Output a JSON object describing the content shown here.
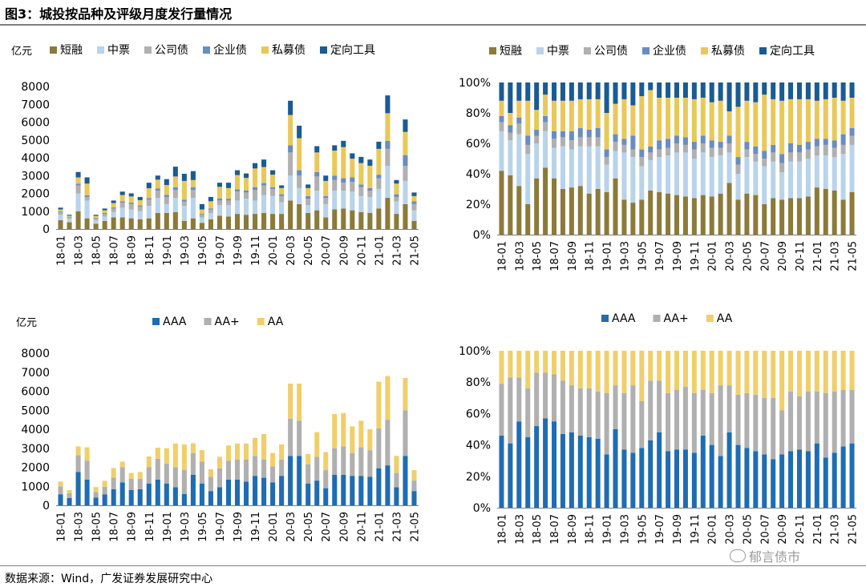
{
  "figure_title": "图3：城投按品种及评级月度发行量情况",
  "source": "数据来源：Wind，广发证券发展研究中心",
  "watermark": "郁言债市",
  "chart_data": [
    {
      "id": "product-amount",
      "type": "bar",
      "stacked": true,
      "unit_label": "亿元",
      "ylim": [
        0,
        8000
      ],
      "yticks": [
        0,
        1000,
        2000,
        3000,
        4000,
        5000,
        6000,
        7000,
        8000
      ],
      "categories": [
        "18-01",
        "18-02",
        "18-03",
        "18-04",
        "18-05",
        "18-06",
        "18-07",
        "18-08",
        "18-09",
        "18-10",
        "18-11",
        "18-12",
        "19-01",
        "19-02",
        "19-03",
        "19-04",
        "19-05",
        "19-06",
        "19-07",
        "19-08",
        "19-09",
        "19-10",
        "19-11",
        "19-12",
        "20-01",
        "20-02",
        "20-03",
        "20-04",
        "20-05",
        "20-06",
        "20-07",
        "20-08",
        "20-09",
        "20-10",
        "20-11",
        "20-12",
        "21-01",
        "21-02",
        "21-03",
        "21-04",
        "21-05"
      ],
      "series": [
        {
          "name": "短融",
          "color": "#8b7a3a",
          "values": [
            500,
            380,
            1000,
            600,
            300,
            450,
            650,
            650,
            600,
            550,
            600,
            900,
            900,
            950,
            450,
            600,
            350,
            550,
            750,
            700,
            850,
            800,
            850,
            900,
            850,
            850,
            1600,
            1400,
            900,
            1050,
            650,
            1100,
            1150,
            1050,
            950,
            900,
            1150,
            1750,
            850,
            1400,
            450
          ]
        },
        {
          "name": "中票",
          "color": "#b8d3ea",
          "values": [
            300,
            200,
            1000,
            1000,
            200,
            250,
            300,
            550,
            500,
            450,
            700,
            850,
            500,
            800,
            850,
            1150,
            300,
            350,
            600,
            650,
            750,
            900,
            750,
            1000,
            1000,
            650,
            1400,
            900,
            450,
            1100,
            750,
            1050,
            1000,
            1050,
            900,
            900,
            1100,
            1800,
            700,
            1300,
            600
          ]
        },
        {
          "name": "公司债",
          "color": "#b0b0b0",
          "values": [
            150,
            80,
            450,
            200,
            100,
            150,
            200,
            280,
            300,
            250,
            350,
            400,
            400,
            450,
            250,
            450,
            150,
            200,
            250,
            250,
            500,
            350,
            600,
            550,
            400,
            350,
            1300,
            700,
            350,
            800,
            350,
            600,
            450,
            550,
            500,
            350,
            600,
            950,
            250,
            850,
            350
          ]
        },
        {
          "name": "企业债",
          "color": "#6a8dc0",
          "values": [
            50,
            30,
            100,
            100,
            40,
            50,
            60,
            80,
            80,
            70,
            90,
            120,
            120,
            150,
            100,
            150,
            50,
            60,
            120,
            100,
            130,
            120,
            150,
            130,
            100,
            100,
            400,
            300,
            150,
            250,
            100,
            250,
            250,
            250,
            150,
            150,
            200,
            450,
            150,
            600,
            150
          ]
        },
        {
          "name": "私募债",
          "color": "#e9c85a",
          "values": [
            100,
            60,
            350,
            650,
            100,
            150,
            250,
            350,
            350,
            300,
            550,
            500,
            550,
            600,
            1050,
            400,
            250,
            400,
            650,
            600,
            800,
            700,
            1050,
            900,
            700,
            350,
            1700,
            1800,
            450,
            1100,
            850,
            1400,
            1750,
            1050,
            1200,
            1250,
            1450,
            1550,
            600,
            1300,
            300
          ]
        },
        {
          "name": "定向工具",
          "color": "#1a5b92",
          "values": [
            100,
            50,
            300,
            350,
            60,
            100,
            140,
            190,
            170,
            180,
            310,
            230,
            330,
            550,
            400,
            500,
            300,
            240,
            230,
            300,
            270,
            250,
            300,
            420,
            250,
            150,
            800,
            700,
            200,
            350,
            300,
            300,
            350,
            300,
            350,
            350,
            400,
            1000,
            200,
            700,
            200
          ]
        }
      ]
    },
    {
      "id": "product-share",
      "type": "bar",
      "stacked": true,
      "percent": true,
      "ylim": [
        0,
        100
      ],
      "yticks": [
        0,
        20,
        40,
        60,
        80,
        100
      ],
      "tick_labels": [
        "0%",
        "20%",
        "40%",
        "60%",
        "80%",
        "100%"
      ],
      "categories": [
        "18-01",
        "18-02",
        "18-03",
        "18-04",
        "18-05",
        "18-06",
        "18-07",
        "18-08",
        "18-09",
        "18-10",
        "18-11",
        "18-12",
        "19-01",
        "19-02",
        "19-03",
        "19-04",
        "19-05",
        "19-06",
        "19-07",
        "19-08",
        "19-09",
        "19-10",
        "19-11",
        "19-12",
        "20-01",
        "20-02",
        "20-03",
        "20-04",
        "20-05",
        "20-06",
        "20-07",
        "20-08",
        "20-09",
        "20-10",
        "20-11",
        "20-12",
        "21-01",
        "21-02",
        "21-03",
        "21-04",
        "21-05"
      ],
      "series": [
        {
          "name": "短融",
          "color": "#8b7a3a",
          "values": [
            42,
            39,
            32,
            20,
            37,
            44,
            37,
            30,
            31,
            32,
            27,
            30,
            28,
            37,
            23,
            21,
            23,
            29,
            28,
            27,
            26,
            25,
            24,
            26,
            25,
            27,
            34,
            23,
            27,
            26,
            20,
            24,
            23,
            24,
            24,
            25,
            31,
            30,
            29,
            23,
            28
          ]
        },
        {
          "name": "中票",
          "color": "#b8d3ea",
          "values": [
            26,
            23,
            34,
            33,
            23,
            24,
            20,
            28,
            25,
            26,
            31,
            28,
            18,
            18,
            31,
            30,
            22,
            20,
            23,
            25,
            28,
            29,
            26,
            28,
            26,
            25,
            20,
            17,
            24,
            22,
            25,
            24,
            18,
            24,
            24,
            25,
            21,
            22,
            22,
            30,
            31
          ]
        },
        {
          "name": "公司债",
          "color": "#b0b0b0",
          "values": [
            6,
            5,
            7,
            6,
            5,
            6,
            6,
            6,
            6,
            6,
            6,
            6,
            5,
            6,
            5,
            5,
            6,
            5,
            5,
            5,
            6,
            5,
            6,
            6,
            6,
            5,
            6,
            6,
            5,
            5,
            5,
            6,
            6,
            6,
            6,
            6,
            6,
            7,
            6,
            6,
            6
          ]
        },
        {
          "name": "企业债",
          "color": "#6a8dc0",
          "values": [
            4,
            5,
            4,
            6,
            4,
            4,
            5,
            4,
            6,
            6,
            5,
            6,
            5,
            5,
            4,
            9,
            5,
            4,
            6,
            6,
            5,
            5,
            5,
            5,
            5,
            4,
            5,
            5,
            5,
            5,
            5,
            5,
            6,
            6,
            5,
            5,
            5,
            4,
            5,
            7,
            5
          ]
        },
        {
          "name": "私募债",
          "color": "#e9c85a",
          "values": [
            10,
            8,
            11,
            23,
            13,
            14,
            20,
            20,
            20,
            19,
            20,
            19,
            24,
            20,
            26,
            20,
            35,
            37,
            28,
            27,
            25,
            26,
            28,
            25,
            25,
            27,
            16,
            33,
            27,
            29,
            37,
            30,
            35,
            29,
            30,
            28,
            25,
            26,
            28,
            22,
            20
          ]
        },
        {
          "name": "定向工具",
          "color": "#1a5b92",
          "values": [
            12,
            20,
            12,
            12,
            18,
            8,
            12,
            12,
            12,
            11,
            11,
            11,
            20,
            14,
            11,
            15,
            9,
            5,
            10,
            10,
            10,
            10,
            11,
            10,
            13,
            12,
            19,
            16,
            12,
            13,
            8,
            11,
            12,
            11,
            11,
            11,
            12,
            11,
            10,
            12,
            10
          ]
        }
      ]
    },
    {
      "id": "rating-amount",
      "type": "bar",
      "stacked": true,
      "unit_label": "亿元",
      "ylim": [
        0,
        8000
      ],
      "yticks": [
        0,
        1000,
        2000,
        3000,
        4000,
        5000,
        6000,
        7000,
        8000
      ],
      "categories": [
        "18-01",
        "18-02",
        "18-03",
        "18-04",
        "18-05",
        "18-06",
        "18-07",
        "18-08",
        "18-09",
        "18-10",
        "18-11",
        "18-12",
        "19-01",
        "19-02",
        "19-03",
        "19-04",
        "19-05",
        "19-06",
        "19-07",
        "19-08",
        "19-09",
        "19-10",
        "19-11",
        "19-12",
        "20-01",
        "20-02",
        "20-03",
        "20-04",
        "20-05",
        "20-06",
        "20-07",
        "20-08",
        "20-09",
        "20-10",
        "20-11",
        "20-12",
        "21-01",
        "21-02",
        "21-03",
        "21-04",
        "21-05"
      ],
      "series": [
        {
          "name": "AAA",
          "color": "#1f6cb3",
          "values": [
            580,
            390,
            1750,
            1350,
            400,
            580,
            850,
            1200,
            800,
            850,
            1150,
            1350,
            1150,
            950,
            600,
            1600,
            1150,
            750,
            950,
            1350,
            1350,
            1250,
            1550,
            1450,
            1200,
            1550,
            2600,
            2600,
            1150,
            1300,
            900,
            1600,
            1600,
            1550,
            1550,
            1500,
            1950,
            2100,
            950,
            2600,
            750
          ]
        },
        {
          "name": "AA+",
          "color": "#b0b0b0",
          "values": [
            420,
            250,
            880,
            1000,
            300,
            390,
            600,
            800,
            600,
            550,
            850,
            1100,
            1050,
            1050,
            1250,
            1150,
            1150,
            750,
            1000,
            1000,
            1050,
            1150,
            1050,
            950,
            850,
            850,
            1950,
            1850,
            1000,
            1250,
            950,
            1400,
            1500,
            1200,
            1500,
            1400,
            2100,
            2400,
            750,
            2400,
            550
          ]
        },
        {
          "name": "AA",
          "color": "#f0cf6b",
          "values": [
            250,
            160,
            470,
            700,
            260,
            320,
            510,
            300,
            300,
            350,
            570,
            580,
            800,
            1250,
            1350,
            510,
            600,
            400,
            600,
            800,
            850,
            850,
            950,
            1350,
            700,
            800,
            1850,
            1950,
            550,
            1300,
            950,
            1800,
            1750,
            1400,
            1400,
            1100,
            2450,
            2300,
            900,
            1700,
            550
          ]
        }
      ]
    },
    {
      "id": "rating-share",
      "type": "bar",
      "stacked": true,
      "percent": true,
      "ylim": [
        0,
        100
      ],
      "yticks": [
        0,
        20,
        40,
        60,
        80,
        100
      ],
      "tick_labels": [
        "0%",
        "20%",
        "40%",
        "60%",
        "80%",
        "100%"
      ],
      "categories": [
        "18-01",
        "18-02",
        "18-03",
        "18-04",
        "18-05",
        "18-06",
        "18-07",
        "18-08",
        "18-09",
        "18-10",
        "18-11",
        "18-12",
        "19-01",
        "19-02",
        "19-03",
        "19-04",
        "19-05",
        "19-06",
        "19-07",
        "19-08",
        "19-09",
        "19-10",
        "19-11",
        "19-12",
        "20-01",
        "20-02",
        "20-03",
        "20-04",
        "20-05",
        "20-06",
        "20-07",
        "20-08",
        "20-09",
        "20-10",
        "20-11",
        "20-12",
        "21-01",
        "21-02",
        "21-03",
        "21-04",
        "21-05"
      ],
      "series": [
        {
          "name": "AAA",
          "color": "#1f6cb3",
          "values": [
            46,
            41,
            55,
            45,
            52,
            57,
            55,
            47,
            48,
            46,
            45,
            44,
            34,
            50,
            37,
            35,
            38,
            43,
            48,
            36,
            37,
            37,
            35,
            46,
            40,
            33,
            48,
            40,
            38,
            36,
            34,
            31,
            34,
            36,
            37,
            36,
            41,
            32,
            35,
            39,
            41
          ]
        },
        {
          "name": "AA+",
          "color": "#b0b0b0",
          "values": [
            33,
            42,
            28,
            31,
            34,
            29,
            30,
            34,
            30,
            30,
            31,
            30,
            39,
            28,
            36,
            43,
            30,
            38,
            33,
            37,
            38,
            40,
            38,
            29,
            33,
            45,
            30,
            32,
            35,
            36,
            36,
            39,
            28,
            38,
            34,
            38,
            33,
            41,
            39,
            36,
            34
          ]
        },
        {
          "name": "AA",
          "color": "#f0cf6b",
          "values": [
            21,
            17,
            17,
            24,
            14,
            14,
            15,
            19,
            22,
            24,
            24,
            26,
            27,
            22,
            27,
            22,
            32,
            19,
            19,
            27,
            25,
            23,
            27,
            25,
            27,
            22,
            22,
            28,
            27,
            28,
            30,
            30,
            38,
            26,
            29,
            26,
            26,
            27,
            26,
            25,
            25
          ]
        }
      ]
    }
  ]
}
